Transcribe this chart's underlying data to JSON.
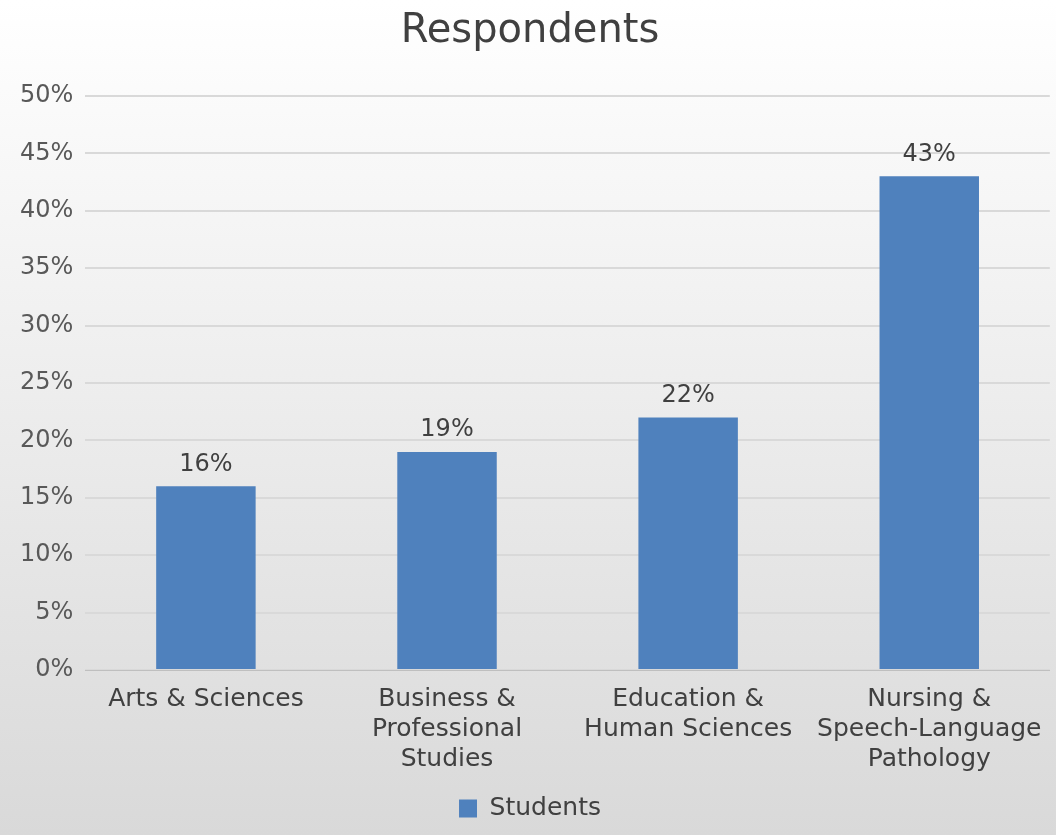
{
  "chart_data": {
    "type": "bar",
    "title": "Respondents",
    "categories": [
      "Arts & Sciences",
      "Business & Professional Studies",
      "Education & Human Sciences",
      "Nursing & Speech-Language Pathology"
    ],
    "series": [
      {
        "name": "Students",
        "color": "#4f81bd",
        "values": [
          16,
          19,
          22,
          43
        ],
        "value_labels": [
          "16%",
          "19%",
          "22%",
          "43%"
        ]
      }
    ],
    "ylim": [
      0,
      50
    ],
    "yticks": [
      {
        "value": 0,
        "label": "0%"
      },
      {
        "value": 5,
        "label": "5%"
      },
      {
        "value": 10,
        "label": "10%"
      },
      {
        "value": 15,
        "label": "15%"
      },
      {
        "value": 20,
        "label": "20%"
      },
      {
        "value": 25,
        "label": "25%"
      },
      {
        "value": 30,
        "label": "30%"
      },
      {
        "value": 35,
        "label": "35%"
      },
      {
        "value": 40,
        "label": "40%"
      },
      {
        "value": 45,
        "label": "45%"
      },
      {
        "value": 50,
        "label": "50%"
      }
    ],
    "grid": "y",
    "legend": "bottom"
  }
}
